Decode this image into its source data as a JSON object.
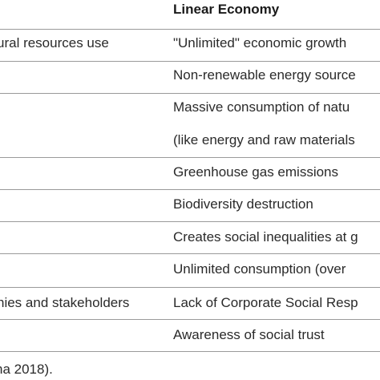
{
  "table": {
    "header": {
      "left": "",
      "right": "Linear Economy"
    },
    "rows": [
      {
        "left": "ural resources use",
        "right": [
          "\"Unlimited\" economic growth"
        ]
      },
      {
        "left": "",
        "right": [
          "Non-renewable energy source"
        ]
      },
      {
        "left": "",
        "right": [
          "Massive consumption of natu",
          "(like energy and raw materials"
        ]
      },
      {
        "left": "",
        "right": [
          "Greenhouse gas emissions"
        ]
      },
      {
        "left": "",
        "right": [
          "Biodiversity destruction"
        ]
      },
      {
        "left": "",
        "right": [
          "Creates social inequalities at g"
        ]
      },
      {
        "left": "",
        "right": [
          "Unlimited consumption (over"
        ]
      },
      {
        "left": "nies and stakeholders",
        "right": [
          "Lack of Corporate Social Resp"
        ]
      },
      {
        "left": "",
        "right": [
          "Awareness of social trust"
        ]
      }
    ]
  },
  "source_note": "na 2018)."
}
